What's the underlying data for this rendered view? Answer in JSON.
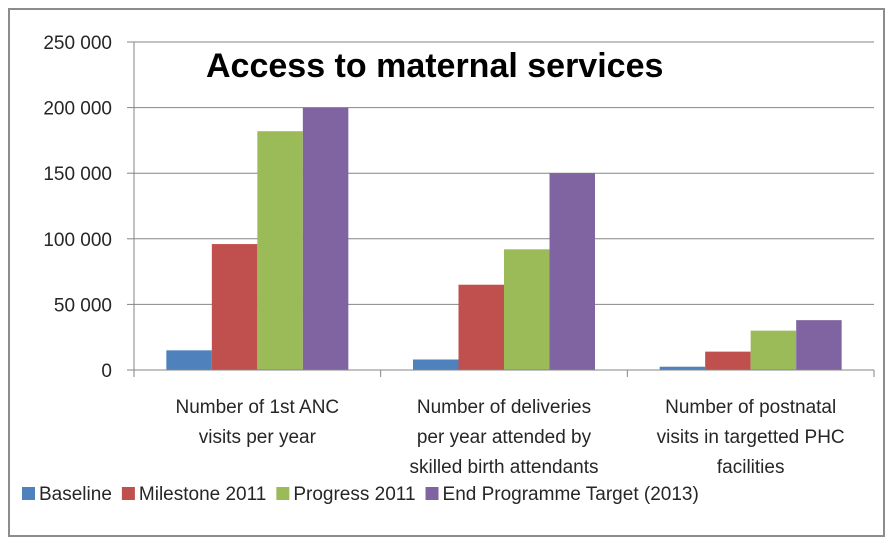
{
  "chart_data": {
    "type": "bar",
    "title": "Access to maternal services",
    "categories": [
      [
        "Number of 1st ANC",
        "visits per year"
      ],
      [
        "Number of deliveries",
        "per year attended by",
        "skilled birth attendants"
      ],
      [
        "Number of postnatal",
        "visits in targetted PHC",
        "facilities"
      ]
    ],
    "series": [
      {
        "name": "Baseline",
        "color": "#4f81bd",
        "values": [
          15000,
          8000,
          2500
        ]
      },
      {
        "name": "Milestone 2011",
        "color": "#c0504d",
        "values": [
          96000,
          65000,
          14000
        ]
      },
      {
        "name": "Progress 2011",
        "color": "#9bbb59",
        "values": [
          182000,
          92000,
          30000
        ]
      },
      {
        "name": "End Programme Target (2013)",
        "color": "#8064a2",
        "values": [
          200000,
          150000,
          38000
        ]
      }
    ],
    "ylim": [
      0,
      250000
    ],
    "yticks": [
      0,
      50000,
      100000,
      150000,
      200000,
      250000
    ],
    "ytick_labels": [
      "0",
      "50 000",
      "100 000",
      "150 000",
      "200 000",
      "250 000"
    ],
    "grid": true,
    "legend_position": "bottom",
    "xlabel": "",
    "ylabel": ""
  }
}
